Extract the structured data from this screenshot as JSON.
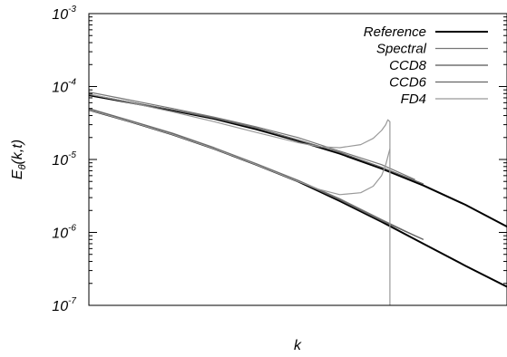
{
  "chart_data": {
    "type": "line",
    "title": "",
    "xlabel": "k",
    "ylabel_main": "E",
    "ylabel_sub": "θ",
    "ylabel_args": "(k,t)",
    "yscale": "log",
    "ylim": [
      1e-07,
      0.001
    ],
    "xlim": [
      0,
      1
    ],
    "x_ticks_labeled": false,
    "grid": false,
    "legend_position": "top-right",
    "y_ticks": [
      {
        "base": "10",
        "exp": "-3",
        "value": 0.001
      },
      {
        "base": "10",
        "exp": "-4",
        "value": 0.0001
      },
      {
        "base": "10",
        "exp": "-5",
        "value": 1e-05
      },
      {
        "base": "10",
        "exp": "-6",
        "value": 1e-06
      },
      {
        "base": "10",
        "exp": "-7",
        "value": 1e-07
      }
    ],
    "series": [
      {
        "name": "Reference",
        "color": "#000000",
        "width": 2,
        "segments": [
          {
            "x": [
              0,
              0.1,
              0.2,
              0.3,
              0.4,
              0.5,
              0.6,
              0.7,
              0.8,
              0.9,
              1.0
            ],
            "y": [
              7.6e-05,
              6e-05,
              4.7e-05,
              3.6e-05,
              2.6e-05,
              1.8e-05,
              1.2e-05,
              7.5e-06,
              4.4e-06,
              2.4e-06,
              1.2e-06
            ]
          },
          {
            "x": [
              0,
              0.1,
              0.2,
              0.3,
              0.4,
              0.5,
              0.6,
              0.7,
              0.8,
              0.9,
              1.0
            ],
            "y": [
              4.8e-05,
              3.3e-05,
              2.2e-05,
              1.4e-05,
              8.5e-06,
              5e-06,
              2.7e-06,
              1.4e-06,
              7e-07,
              3.5e-07,
              1.8e-07
            ]
          }
        ]
      },
      {
        "name": "Spectral",
        "color": "#777777",
        "width": 1.2,
        "segments": [
          {
            "x": [
              0,
              0.1,
              0.2,
              0.3,
              0.4,
              0.5,
              0.6,
              0.7,
              0.78
            ],
            "y": [
              8.4e-05,
              6.5e-05,
              5e-05,
              3.8e-05,
              2.8e-05,
              2e-05,
              1.3e-05,
              8.5e-06,
              5.3e-06
            ]
          },
          {
            "x": [
              0,
              0.1,
              0.2,
              0.3,
              0.4,
              0.5,
              0.6,
              0.7,
              0.78
            ],
            "y": [
              5e-05,
              3.4e-05,
              2.3e-05,
              1.45e-05,
              8.8e-06,
              5.2e-06,
              2.9e-06,
              1.5e-06,
              9e-07
            ]
          }
        ]
      },
      {
        "name": "CCD8",
        "color": "#555555",
        "width": 1.2,
        "segments": [
          {
            "x": [
              0,
              0.1,
              0.2,
              0.3,
              0.4,
              0.5,
              0.6,
              0.7,
              0.8
            ],
            "y": [
              7.8e-05,
              6.1e-05,
              4.8e-05,
              3.7e-05,
              2.7e-05,
              1.85e-05,
              1.25e-05,
              7.8e-06,
              4.6e-06
            ]
          },
          {
            "x": [
              0,
              0.1,
              0.2,
              0.3,
              0.4,
              0.5,
              0.6,
              0.7,
              0.8
            ],
            "y": [
              4.9e-05,
              3.35e-05,
              2.25e-05,
              1.42e-05,
              8.6e-06,
              5.1e-06,
              2.8e-06,
              1.45e-06,
              8e-07
            ]
          }
        ]
      },
      {
        "name": "CCD6",
        "color": "#666666",
        "width": 1.2,
        "segments": [
          {
            "x": [
              0,
              0.1,
              0.2,
              0.3,
              0.4,
              0.5,
              0.6,
              0.7,
              0.8
            ],
            "y": [
              7.8e-05,
              6.1e-05,
              4.8e-05,
              3.7e-05,
              2.7e-05,
              1.85e-05,
              1.25e-05,
              7.8e-06,
              4.6e-06
            ]
          },
          {
            "x": [
              0,
              0.1,
              0.2,
              0.3,
              0.4,
              0.5,
              0.6,
              0.7,
              0.8
            ],
            "y": [
              4.9e-05,
              3.35e-05,
              2.25e-05,
              1.42e-05,
              8.6e-06,
              5.1e-06,
              2.8e-06,
              1.45e-06,
              8e-07
            ]
          }
        ]
      },
      {
        "name": "FD4",
        "color": "#999999",
        "width": 1.2,
        "segments": [
          {
            "x": [
              0,
              0.1,
              0.2,
              0.3,
              0.4,
              0.5,
              0.55,
              0.6,
              0.65,
              0.68,
              0.7,
              0.71,
              0.715,
              0.72,
              0.72
            ],
            "y": [
              7.9e-05,
              6e-05,
              4.5e-05,
              3.3e-05,
              2.35e-05,
              1.7e-05,
              1.5e-05,
              1.45e-05,
              1.6e-05,
              1.95e-05,
              2.5e-05,
              3e-05,
              3.5e-05,
              3.3e-05,
              1e-07
            ]
          },
          {
            "x": [
              0,
              0.1,
              0.2,
              0.3,
              0.4,
              0.5,
              0.55,
              0.6,
              0.65,
              0.68,
              0.7,
              0.71,
              0.72
            ],
            "y": [
              4.8e-05,
              3.3e-05,
              2.2e-05,
              1.4e-05,
              8.5e-06,
              5e-06,
              3.9e-06,
              3.3e-06,
              3.5e-06,
              4.3e-06,
              6e-06,
              8.5e-06,
              1.4e-05
            ]
          }
        ]
      }
    ]
  }
}
